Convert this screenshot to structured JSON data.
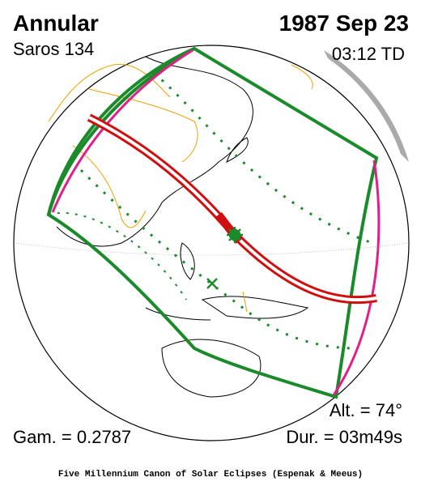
{
  "header": {
    "eclipse_type": "Annular",
    "saros": "Saros 134",
    "date": "1987 Sep 23",
    "time": "03:12 TD"
  },
  "stats": {
    "altitude": "Alt. = 74°",
    "gamma": "Gam. = 0.2787",
    "duration": "Dur. = 03m49s"
  },
  "footer": "Five Millennium Canon of Solar Eclipses (Espenak & Meeus)"
}
